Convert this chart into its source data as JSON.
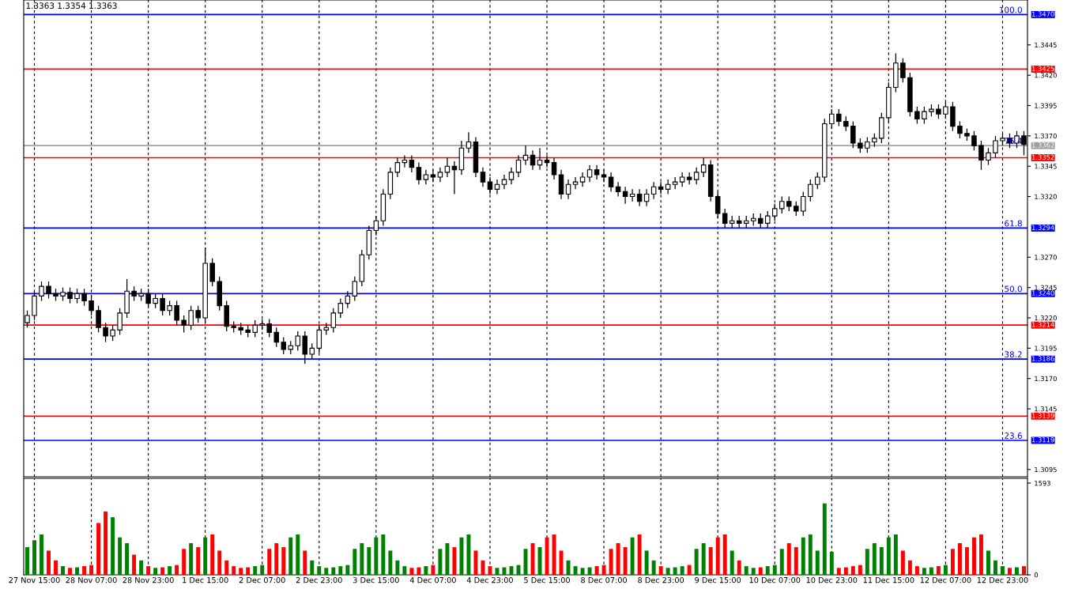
{
  "chart_data": [
    {
      "type": "candlestick",
      "categories": [
        null,
        null,
        null,
        null,
        null,
        null,
        null,
        null,
        null,
        null,
        null,
        null,
        null,
        null,
        null,
        null,
        null,
        null,
        null,
        null,
        null,
        null,
        null,
        null,
        null,
        null,
        null,
        null,
        null,
        null,
        null,
        null,
        null,
        null,
        null,
        null,
        null,
        null,
        null,
        null,
        null,
        null,
        null,
        null,
        null,
        null,
        null,
        null,
        null,
        null,
        null,
        null,
        null,
        null,
        null,
        null,
        null,
        null,
        null,
        null,
        null,
        null,
        null,
        null,
        null,
        null,
        null,
        null,
        null,
        null,
        null,
        null,
        null,
        null,
        null,
        null,
        null,
        null,
        null,
        null,
        null,
        null,
        null,
        null,
        null,
        null,
        null,
        null,
        null,
        null,
        null,
        null,
        null,
        null,
        null,
        null,
        null,
        null,
        null,
        null,
        null,
        null,
        null,
        null,
        null,
        null,
        null,
        null,
        null,
        null,
        null,
        null,
        null,
        null,
        null,
        null,
        null,
        null,
        null,
        null,
        null,
        null,
        null,
        null,
        null,
        null,
        null,
        null,
        null,
        null,
        null,
        null,
        null,
        null,
        null,
        null,
        null,
        null,
        null,
        null,
        null
      ],
      "ohlc": [
        [
          1.3216,
          1.3226,
          1.3212,
          1.3222
        ],
        [
          1.3222,
          1.3242,
          1.3218,
          1.3238
        ],
        [
          1.3238,
          1.325,
          1.3234,
          1.3246
        ],
        [
          1.3246,
          1.325,
          1.3236,
          1.324
        ],
        [
          1.324,
          1.3244,
          1.3234,
          1.3238
        ],
        [
          1.3238,
          1.3245,
          1.3234,
          1.3241
        ],
        [
          1.3241,
          1.3245,
          1.3232,
          1.3236
        ],
        [
          1.3236,
          1.3244,
          1.3232,
          1.324
        ],
        [
          1.324,
          1.3244,
          1.323,
          1.3234
        ],
        [
          1.3234,
          1.3238,
          1.3222,
          1.3226
        ],
        [
          1.3226,
          1.323,
          1.3208,
          1.3212
        ],
        [
          1.3212,
          1.3216,
          1.32,
          1.3205
        ],
        [
          1.3205,
          1.3214,
          1.3201,
          1.321
        ],
        [
          1.321,
          1.3228,
          1.3206,
          1.3224
        ],
        [
          1.3224,
          1.3252,
          1.322,
          1.3242
        ],
        [
          1.3242,
          1.3246,
          1.3234,
          1.3238
        ],
        [
          1.3238,
          1.3244,
          1.3234,
          1.324
        ],
        [
          1.324,
          1.3244,
          1.3228,
          1.3232
        ],
        [
          1.3232,
          1.324,
          1.3228,
          1.3236
        ],
        [
          1.3236,
          1.324,
          1.3222,
          1.3226
        ],
        [
          1.3226,
          1.3234,
          1.3222,
          1.323
        ],
        [
          1.323,
          1.3234,
          1.3214,
          1.3218
        ],
        [
          1.3218,
          1.3222,
          1.3208,
          1.3214
        ],
        [
          1.3214,
          1.323,
          1.321,
          1.3226
        ],
        [
          1.3226,
          1.323,
          1.3216,
          1.322
        ],
        [
          1.322,
          1.3278,
          1.3216,
          1.3265
        ],
        [
          1.3265,
          1.3269,
          1.3246,
          1.325
        ],
        [
          1.325,
          1.3254,
          1.3226,
          1.323
        ],
        [
          1.323,
          1.3234,
          1.3209,
          1.3213
        ],
        [
          1.3213,
          1.3217,
          1.3208,
          1.3212
        ],
        [
          1.3212,
          1.3216,
          1.3206,
          1.321
        ],
        [
          1.321,
          1.3214,
          1.3204,
          1.3208
        ],
        [
          1.3208,
          1.3218,
          1.3204,
          1.3214
        ],
        [
          1.3214,
          1.3219,
          1.321,
          1.3215
        ],
        [
          1.3215,
          1.3219,
          1.3204,
          1.3208
        ],
        [
          1.3208,
          1.3212,
          1.3196,
          1.32
        ],
        [
          1.32,
          1.3204,
          1.319,
          1.3194
        ],
        [
          1.3194,
          1.3201,
          1.319,
          1.3197
        ],
        [
          1.3197,
          1.3209,
          1.3193,
          1.3205
        ],
        [
          1.3205,
          1.3209,
          1.3182,
          1.319
        ],
        [
          1.319,
          1.3199,
          1.3186,
          1.3195
        ],
        [
          1.3195,
          1.3214,
          1.3191,
          1.321
        ],
        [
          1.321,
          1.3216,
          1.3206,
          1.3212
        ],
        [
          1.3212,
          1.3228,
          1.3208,
          1.3224
        ],
        [
          1.3224,
          1.3236,
          1.322,
          1.3232
        ],
        [
          1.3232,
          1.3242,
          1.3228,
          1.3238
        ],
        [
          1.3238,
          1.3254,
          1.3234,
          1.325
        ],
        [
          1.325,
          1.3276,
          1.3246,
          1.3272
        ],
        [
          1.3272,
          1.3296,
          1.3268,
          1.3292
        ],
        [
          1.3292,
          1.3304,
          1.3288,
          1.33
        ],
        [
          1.33,
          1.3326,
          1.3296,
          1.3322
        ],
        [
          1.3322,
          1.3344,
          1.3318,
          1.334
        ],
        [
          1.334,
          1.3352,
          1.3336,
          1.3348
        ],
        [
          1.3348,
          1.3354,
          1.3344,
          1.335
        ],
        [
          1.335,
          1.3354,
          1.334,
          1.3344
        ],
        [
          1.3344,
          1.3348,
          1.333,
          1.3334
        ],
        [
          1.3334,
          1.3342,
          1.333,
          1.3338
        ],
        [
          1.3338,
          1.3342,
          1.3332,
          1.3336
        ],
        [
          1.3336,
          1.3344,
          1.3332,
          1.334
        ],
        [
          1.334,
          1.3352,
          1.3336,
          1.3345
        ],
        [
          1.3345,
          1.3349,
          1.3322,
          1.3342
        ],
        [
          1.3342,
          1.3366,
          1.3338,
          1.336
        ],
        [
          1.336,
          1.3373,
          1.3356,
          1.3365
        ],
        [
          1.3365,
          1.3369,
          1.3336,
          1.334
        ],
        [
          1.334,
          1.3344,
          1.3328,
          1.3332
        ],
        [
          1.3332,
          1.3336,
          1.3322,
          1.3326
        ],
        [
          1.3326,
          1.3334,
          1.3322,
          1.333
        ],
        [
          1.333,
          1.3338,
          1.3326,
          1.3334
        ],
        [
          1.3334,
          1.3344,
          1.333,
          1.334
        ],
        [
          1.334,
          1.3354,
          1.3336,
          1.335
        ],
        [
          1.335,
          1.3362,
          1.3346,
          1.3354
        ],
        [
          1.3354,
          1.3358,
          1.3342,
          1.3346
        ],
        [
          1.3346,
          1.336,
          1.3342,
          1.335
        ],
        [
          1.335,
          1.3354,
          1.3344,
          1.3348
        ],
        [
          1.3348,
          1.3352,
          1.3334,
          1.3338
        ],
        [
          1.3338,
          1.3342,
          1.3318,
          1.3322
        ],
        [
          1.3322,
          1.3334,
          1.3318,
          1.333
        ],
        [
          1.333,
          1.3336,
          1.3326,
          1.3332
        ],
        [
          1.3332,
          1.334,
          1.3328,
          1.3336
        ],
        [
          1.3336,
          1.3346,
          1.3332,
          1.3342
        ],
        [
          1.3342,
          1.3346,
          1.3334,
          1.3338
        ],
        [
          1.3338,
          1.3342,
          1.3332,
          1.3336
        ],
        [
          1.3336,
          1.334,
          1.3324,
          1.3328
        ],
        [
          1.3328,
          1.3332,
          1.332,
          1.3324
        ],
        [
          1.3324,
          1.3328,
          1.3314,
          1.332
        ],
        [
          1.332,
          1.3326,
          1.3316,
          1.3322
        ],
        [
          1.3322,
          1.3326,
          1.3312,
          1.3316
        ],
        [
          1.3316,
          1.3326,
          1.3312,
          1.3322
        ],
        [
          1.3322,
          1.3332,
          1.3318,
          1.3328
        ],
        [
          1.3328,
          1.3332,
          1.3322,
          1.3326
        ],
        [
          1.3326,
          1.3334,
          1.3322,
          1.333
        ],
        [
          1.333,
          1.3336,
          1.3326,
          1.3332
        ],
        [
          1.3332,
          1.334,
          1.3328,
          1.3336
        ],
        [
          1.3336,
          1.334,
          1.333,
          1.3334
        ],
        [
          1.3334,
          1.3344,
          1.333,
          1.334
        ],
        [
          1.334,
          1.3352,
          1.3336,
          1.3346
        ],
        [
          1.3346,
          1.335,
          1.3316,
          1.332
        ],
        [
          1.332,
          1.3324,
          1.3302,
          1.3306
        ],
        [
          1.3306,
          1.331,
          1.3294,
          1.3298
        ],
        [
          1.3298,
          1.3304,
          1.3294,
          1.33
        ],
        [
          1.33,
          1.3304,
          1.3294,
          1.3298
        ],
        [
          1.3298,
          1.3304,
          1.3294,
          1.33
        ],
        [
          1.33,
          1.3306,
          1.3296,
          1.3302
        ],
        [
          1.3302,
          1.3306,
          1.3294,
          1.3298
        ],
        [
          1.3298,
          1.3308,
          1.3294,
          1.3304
        ],
        [
          1.3304,
          1.3314,
          1.33,
          1.331
        ],
        [
          1.331,
          1.332,
          1.3306,
          1.3316
        ],
        [
          1.3316,
          1.332,
          1.3308,
          1.3312
        ],
        [
          1.3312,
          1.3316,
          1.3304,
          1.3308
        ],
        [
          1.3308,
          1.3324,
          1.3304,
          1.332
        ],
        [
          1.332,
          1.3334,
          1.3316,
          1.333
        ],
        [
          1.333,
          1.334,
          1.3326,
          1.3336
        ],
        [
          1.3336,
          1.3384,
          1.3332,
          1.338
        ],
        [
          1.338,
          1.3392,
          1.3376,
          1.3388
        ],
        [
          1.3388,
          1.3392,
          1.3378,
          1.3382
        ],
        [
          1.3382,
          1.3386,
          1.3374,
          1.3378
        ],
        [
          1.3378,
          1.3382,
          1.336,
          1.3364
        ],
        [
          1.3364,
          1.3368,
          1.3356,
          1.336
        ],
        [
          1.336,
          1.3369,
          1.3356,
          1.3365
        ],
        [
          1.3365,
          1.3372,
          1.3361,
          1.3368
        ],
        [
          1.3368,
          1.3389,
          1.3364,
          1.3385
        ],
        [
          1.3385,
          1.3414,
          1.3381,
          1.341
        ],
        [
          1.341,
          1.3438,
          1.3406,
          1.343
        ],
        [
          1.343,
          1.3434,
          1.3414,
          1.3418
        ],
        [
          1.3418,
          1.3422,
          1.3386,
          1.339
        ],
        [
          1.339,
          1.3394,
          1.338,
          1.3384
        ],
        [
          1.3384,
          1.3394,
          1.338,
          1.339
        ],
        [
          1.339,
          1.3396,
          1.3386,
          1.3392
        ],
        [
          1.3392,
          1.3396,
          1.3384,
          1.3388
        ],
        [
          1.3388,
          1.3398,
          1.3384,
          1.3394
        ],
        [
          1.3394,
          1.3398,
          1.3374,
          1.3378
        ],
        [
          1.3378,
          1.3382,
          1.3368,
          1.3372
        ],
        [
          1.3372,
          1.3376,
          1.3366,
          1.337
        ],
        [
          1.337,
          1.3374,
          1.3358,
          1.3362
        ],
        [
          1.3362,
          1.3366,
          1.3342,
          1.335
        ],
        [
          1.335,
          1.336,
          1.3346,
          1.3356
        ],
        [
          1.3356,
          1.337,
          1.3352,
          1.3366
        ],
        [
          1.3366,
          1.3372,
          1.3362,
          1.3368
        ],
        [
          1.3368,
          1.3372,
          1.336,
          1.3364
        ],
        [
          1.3364,
          1.3374,
          1.336,
          1.337
        ],
        [
          1.337,
          1.3374,
          1.3354,
          1.3363
        ]
      ],
      "color": "#000000",
      "colors": [
        "#ffffff",
        "#ffffff",
        "#ffffff",
        "#000000",
        "#000000",
        "#ffffff",
        "#000000",
        "#ffffff",
        "#000000",
        "#000000",
        "#000000",
        "#000000",
        "#ffffff",
        "#ffffff",
        "#ffffff",
        "#000000",
        "#ffffff",
        "#000000",
        "#ffffff",
        "#000000",
        "#ffffff",
        "#000000",
        "#000000",
        "#ffffff",
        "#000000",
        "#ffffff",
        "#000000",
        "#000000",
        "#000000",
        "#000000",
        "#000000",
        "#000000",
        "#ffffff",
        "#ffffff",
        "#000000",
        "#000000",
        "#000000",
        "#ffffff",
        "#ffffff",
        "#000000",
        "#ffffff",
        "#ffffff",
        "#ffffff",
        "#ffffff",
        "#ffffff",
        "#ffffff",
        "#ffffff",
        "#ffffff",
        "#ffffff",
        "#ffffff",
        "#ffffff",
        "#ffffff",
        "#ffffff",
        "#ffffff",
        "#000000",
        "#000000",
        "#ffffff",
        "#000000",
        "#ffffff",
        "#ffffff",
        "#000000",
        "#ffffff",
        "#ffffff",
        "#000000",
        "#000000",
        "#000000",
        "#ffffff",
        "#ffffff",
        "#ffffff",
        "#ffffff",
        "#ffffff",
        "#000000",
        "#ffffff",
        "#000000",
        "#000000",
        "#000000",
        "#ffffff",
        "#ffffff",
        "#ffffff",
        "#ffffff",
        "#000000",
        "#000000",
        "#000000",
        "#000000",
        "#000000",
        "#ffffff",
        "#000000",
        "#ffffff",
        "#ffffff",
        "#000000",
        "#ffffff",
        "#ffffff",
        "#ffffff",
        "#000000",
        "#ffffff",
        "#ffffff",
        "#000000",
        "#000000",
        "#000000",
        "#ffffff",
        "#000000",
        "#ffffff",
        "#ffffff",
        "#000000",
        "#ffffff",
        "#ffffff",
        "#ffffff",
        "#000000",
        "#000000",
        "#ffffff",
        "#ffffff",
        "#ffffff",
        "#ffffff",
        "#ffffff",
        "#000000",
        "#000000",
        "#000000",
        "#000000",
        "#ffffff",
        "#ffffff",
        "#ffffff",
        "#ffffff",
        "#ffffff",
        "#000000",
        "#000000",
        "#000000",
        "#ffffff",
        "#ffffff",
        "#000000",
        "#ffffff",
        "#000000",
        "#000000",
        "#000000",
        "#000000",
        "#000000",
        "#ffffff",
        "#ffffff",
        "#ffffff",
        "#000000",
        "#ffffff",
        "#000000"
      ],
      "ylim": [
        1.3089,
        1.3482
      ],
      "yticks": [
        1.3095,
        {
          "value": 1.3145,
          "label": "1.3145"
        },
        {
          "value": 1.317,
          "label": "1.3170"
        },
        1.3195,
        {
          "value": 1.322,
          "label": "1.3220"
        },
        1.3245,
        {
          "value": 1.327,
          "label": "1.3270"
        },
        {
          "value": 1.332,
          "label": "1.3320"
        },
        1.3345,
        {
          "value": 1.337,
          "label": "1.3370"
        },
        1.3395,
        {
          "value": 1.342,
          "label": "1.3420"
        },
        1.3445
      ],
      "tick_labels": "y",
      "grid": "x",
      "ref_lines": [
        {
          "axis": "y",
          "value": 1.347,
          "label": "1.3470",
          "color": "#0000ff"
        },
        {
          "axis": "y",
          "value": 1.3425,
          "label": "1.3425",
          "color": "#ff0000"
        },
        {
          "axis": "y",
          "value": 1.3362,
          "label": "1.3362",
          "color": "#a0a0a0"
        },
        {
          "axis": "y",
          "value": 1.3352,
          "label": "1.3352",
          "color": "#ff0000"
        },
        {
          "axis": "y",
          "value": 1.3294,
          "label": "1.3294",
          "color": "#0000ff"
        },
        {
          "axis": "y",
          "value": 1.324,
          "label": "1.3240",
          "color": "#0000ff"
        },
        {
          "axis": "y",
          "value": 1.3214,
          "label": "1.3214",
          "color": "#ff0000"
        },
        {
          "axis": "y",
          "value": 1.3186,
          "label": "1.3186",
          "color": "#0000ff"
        },
        {
          "axis": "y",
          "value": 1.3139,
          "label": "1.3139",
          "color": "#ff0000"
        },
        {
          "axis": "y",
          "value": 1.3119,
          "label": "1.3119",
          "color": "#0000ff"
        }
      ],
      "annotations": [
        "1.3363 1.3354 1.3363",
        {
          "text": "100.0",
          "y": 1.347
        },
        {
          "text": "76.4",
          "y": 1.3362
        },
        {
          "text": "61.8",
          "y": 1.3294
        },
        {
          "text": "50.0",
          "y": 1.324
        },
        {
          "text": "38.2",
          "y": 1.3186
        },
        {
          "text": "23.6",
          "y": 1.3119
        }
      ]
    },
    {
      "type": "bar",
      "categories": [
        null,
        "27 Nov 15:00",
        null,
        null,
        null,
        null,
        null,
        null,
        null,
        "28 Nov 07:00",
        null,
        null,
        null,
        null,
        null,
        null,
        null,
        "28 Nov 23:00",
        null,
        null,
        null,
        null,
        null,
        null,
        null,
        "1 Dec 15:00",
        null,
        null,
        null,
        null,
        null,
        null,
        null,
        "2 Dec 07:00",
        null,
        null,
        null,
        null,
        null,
        null,
        null,
        "2 Dec 23:00",
        null,
        null,
        null,
        null,
        null,
        null,
        null,
        "3 Dec 15:00",
        null,
        null,
        null,
        null,
        null,
        null,
        null,
        "4 Dec 07:00",
        null,
        null,
        null,
        null,
        null,
        null,
        null,
        "4 Dec 23:00",
        null,
        null,
        null,
        null,
        null,
        null,
        null,
        "5 Dec 15:00",
        null,
        null,
        null,
        null,
        null,
        null,
        null,
        "8 Dec 07:00",
        null,
        null,
        null,
        null,
        null,
        null,
        null,
        "8 Dec 23:00",
        null,
        null,
        null,
        null,
        null,
        null,
        null,
        "9 Dec 15:00",
        null,
        null,
        null,
        null,
        null,
        null,
        null,
        "10 Dec 07:00",
        null,
        null,
        null,
        null,
        null,
        null,
        null,
        "10 Dec 23:00",
        null,
        null,
        null,
        null,
        null,
        null,
        null,
        "11 Dec 15:00",
        null,
        null,
        null,
        null,
        null,
        null,
        null,
        "12 Dec 07:00",
        null,
        null,
        null,
        null,
        null,
        null,
        null,
        "12 Dec 23:00",
        null,
        null,
        null
      ],
      "values": [
        480,
        600,
        700,
        420,
        250,
        150,
        120,
        130,
        150,
        170,
        900,
        1100,
        1000,
        650,
        550,
        350,
        250,
        150,
        120,
        130,
        150,
        170,
        450,
        550,
        480,
        650,
        700,
        420,
        250,
        150,
        120,
        130,
        150,
        170,
        450,
        550,
        480,
        650,
        700,
        420,
        250,
        150,
        120,
        130,
        150,
        170,
        450,
        550,
        480,
        650,
        700,
        420,
        250,
        150,
        120,
        130,
        150,
        170,
        450,
        550,
        480,
        650,
        700,
        420,
        250,
        150,
        120,
        130,
        150,
        170,
        450,
        550,
        480,
        650,
        700,
        420,
        250,
        150,
        120,
        130,
        150,
        170,
        450,
        550,
        480,
        650,
        700,
        420,
        250,
        150,
        120,
        130,
        150,
        170,
        450,
        550,
        480,
        650,
        700,
        420,
        250,
        150,
        120,
        130,
        150,
        170,
        450,
        550,
        480,
        650,
        700,
        420,
        1240,
        400,
        120,
        130,
        150,
        170,
        450,
        550,
        480,
        650,
        700,
        420,
        250,
        150,
        120,
        130,
        150,
        170,
        450,
        550,
        480,
        650,
        700,
        420,
        250,
        150,
        120,
        130,
        150
      ],
      "colors": [
        "#008000",
        "#008000",
        "#008000",
        "#ff0000",
        "#ff0000",
        "#008000",
        "#ff0000",
        "#008000",
        "#ff0000",
        "#ff0000",
        "#ff0000",
        "#ff0000",
        "#008000",
        "#008000",
        "#008000",
        "#ff0000",
        "#008000",
        "#ff0000",
        "#008000",
        "#ff0000",
        "#008000",
        "#ff0000",
        "#ff0000",
        "#008000",
        "#ff0000",
        "#008000",
        "#ff0000",
        "#ff0000",
        "#ff0000",
        "#ff0000",
        "#ff0000",
        "#ff0000",
        "#008000",
        "#008000",
        "#ff0000",
        "#ff0000",
        "#ff0000",
        "#008000",
        "#008000",
        "#ff0000",
        "#008000",
        "#008000",
        "#008000",
        "#008000",
        "#008000",
        "#008000",
        "#008000",
        "#008000",
        "#008000",
        "#008000",
        "#008000",
        "#008000",
        "#008000",
        "#008000",
        "#ff0000",
        "#ff0000",
        "#008000",
        "#ff0000",
        "#008000",
        "#008000",
        "#ff0000",
        "#008000",
        "#008000",
        "#ff0000",
        "#ff0000",
        "#ff0000",
        "#008000",
        "#008000",
        "#008000",
        "#008000",
        "#008000",
        "#ff0000",
        "#008000",
        "#ff0000",
        "#ff0000",
        "#ff0000",
        "#008000",
        "#008000",
        "#008000",
        "#008000",
        "#ff0000",
        "#ff0000",
        "#ff0000",
        "#ff0000",
        "#ff0000",
        "#008000",
        "#ff0000",
        "#008000",
        "#008000",
        "#ff0000",
        "#008000",
        "#008000",
        "#008000",
        "#ff0000",
        "#008000",
        "#008000",
        "#ff0000",
        "#ff0000",
        "#ff0000",
        "#008000",
        "#ff0000",
        "#008000",
        "#008000",
        "#ff0000",
        "#008000",
        "#008000",
        "#008000",
        "#ff0000",
        "#ff0000",
        "#008000",
        "#008000",
        "#008000",
        "#008000",
        "#008000",
        "#ff0000",
        "#ff0000",
        "#ff0000",
        "#ff0000",
        "#008000",
        "#008000",
        "#008000",
        "#008000",
        "#008000",
        "#ff0000",
        "#ff0000",
        "#ff0000",
        "#008000",
        "#008000",
        "#ff0000",
        "#008000",
        "#ff0000",
        "#ff0000",
        "#ff0000",
        "#ff0000",
        "#ff0000",
        "#008000",
        "#008000",
        "#008000",
        "#ff0000",
        "#008000",
        "#ff0000"
      ],
      "ylim": [
        0,
        1675
      ],
      "yticks": [
        0,
        1593
      ],
      "grid": "x"
    }
  ]
}
